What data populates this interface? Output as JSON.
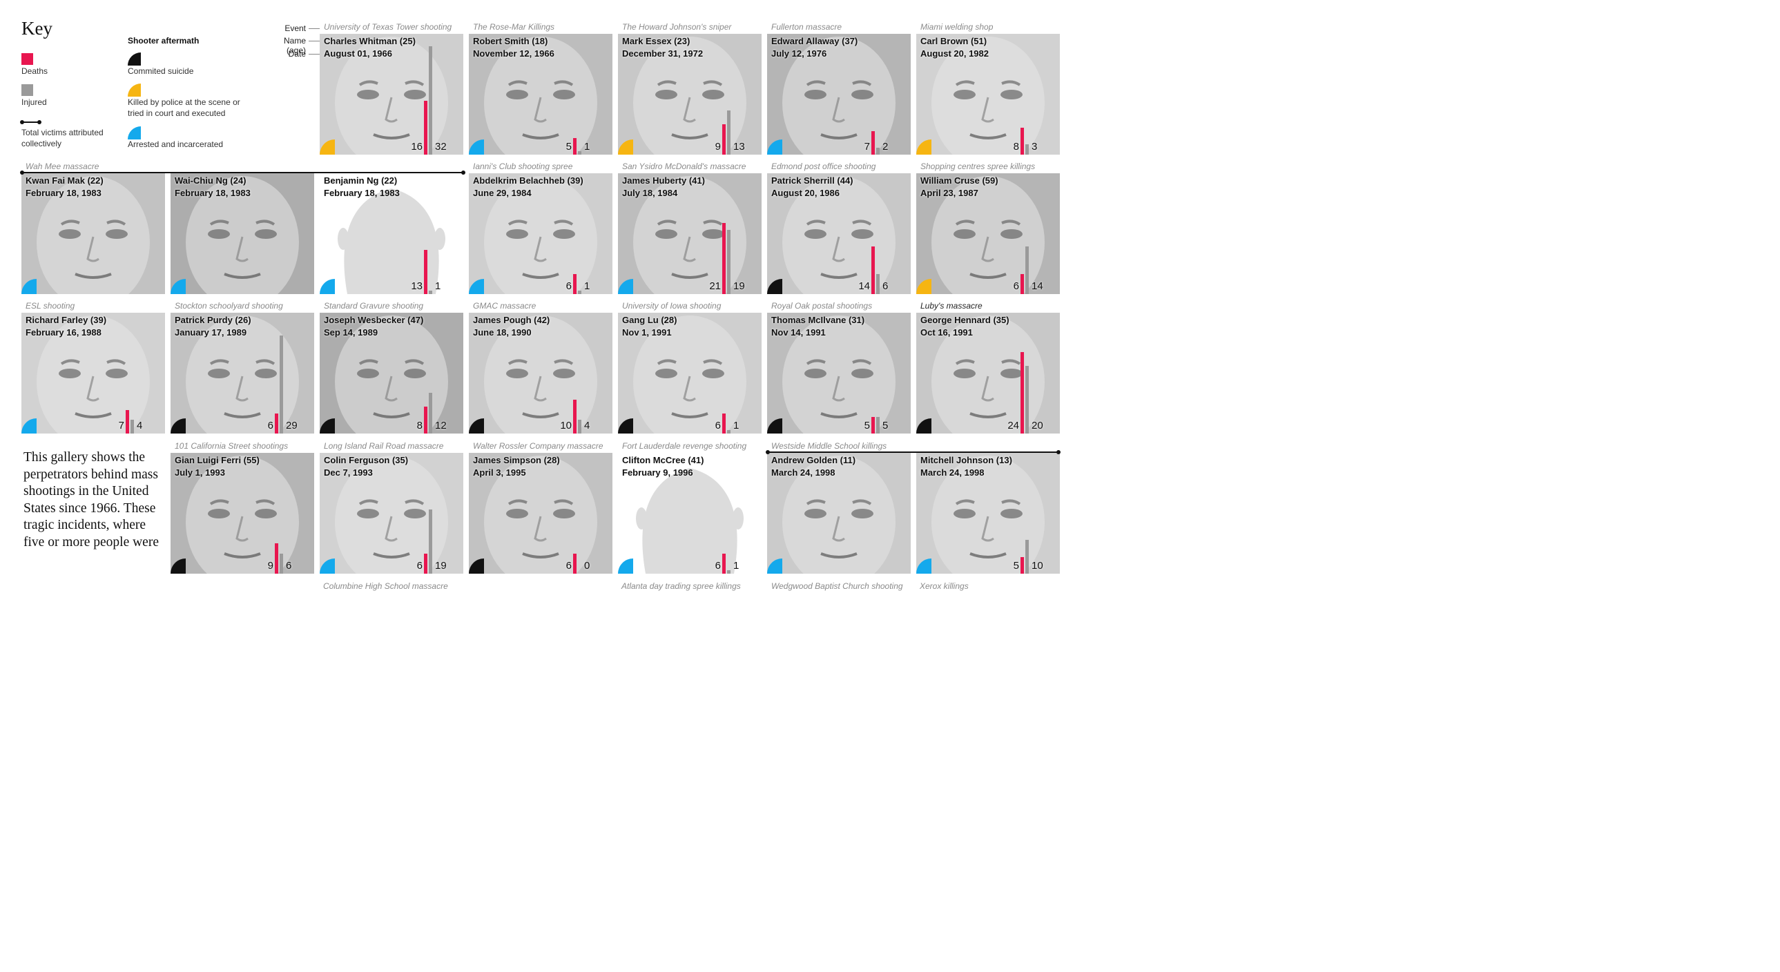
{
  "colors": {
    "deaths": "#e8164f",
    "injured": "#9a9a9a",
    "suicide": "#111111",
    "killed": "#f6b512",
    "arrested": "#14a9ec"
  },
  "key": {
    "title": "Key",
    "deaths": "Deaths",
    "injured": "Injured",
    "total": "Total victims attributed collectively",
    "aftermath_title": "Shooter aftermath",
    "suicide": "Commited suicide",
    "killed": "Killed by police at the scene or tried in court and executed",
    "arrested": "Arrested and incarcerated"
  },
  "annotation": {
    "event": "Event",
    "name_age": "Name (age)",
    "date": "Date"
  },
  "intro": "This gallery shows the perpetrators behind mass shootings in the United States since 1966. These tragic incidents, where five or more people were",
  "bottom_events": [
    "Columbine High School massacre",
    "Atlanta day trading spree killings",
    "Wedgwood Baptist Church shooting",
    "Xerox killings"
  ],
  "chart_data": {
    "type": "bar",
    "series_names": [
      "Deaths",
      "Injured"
    ],
    "scale_note": "bar height proportional to victim count",
    "cells": [
      {
        "event": "University of Texas Tower shooting",
        "name": "Charles Whitman (25)",
        "date": "August 01, 1966",
        "deaths": 16,
        "injured": 32,
        "aftermath": "killed"
      },
      {
        "event": "The Rose-Mar Killings",
        "name": "Robert Smith (18)",
        "date": "November 12, 1966",
        "deaths": 5,
        "injured": 1,
        "aftermath": "arrested"
      },
      {
        "event": "The Howard Johnson's sniper",
        "name": "Mark Essex (23)",
        "date": "December 31, 1972",
        "deaths": 9,
        "injured": 13,
        "aftermath": "killed"
      },
      {
        "event": "Fullerton massacre",
        "name": "Edward Allaway (37)",
        "date": "July 12, 1976",
        "deaths": 7,
        "injured": 2,
        "aftermath": "arrested"
      },
      {
        "event": "Miami welding shop",
        "name": "Carl Brown (51)",
        "date": "August 20, 1982",
        "deaths": 8,
        "injured": 3,
        "aftermath": "killed"
      },
      {
        "event": "Wah Mee massacre",
        "name": "Kwan Fai Mak (22)",
        "date": "February 18, 1983",
        "aftermath": "arrested"
      },
      {
        "event": "",
        "name": "Wai-Chiu Ng (24)",
        "date": "February 18, 1983",
        "aftermath": "arrested"
      },
      {
        "event": "",
        "name": "Benjamin Ng (22)",
        "date": "February 18, 1983",
        "deaths": 13,
        "injured": 1,
        "aftermath": "arrested",
        "silhouette": true
      },
      {
        "event": "Ianni's Club shooting spree",
        "name": "Abdelkrim Belachheb (39)",
        "date": "June 29, 1984",
        "deaths": 6,
        "injured": 1,
        "aftermath": "arrested"
      },
      {
        "event": "San Ysidro McDonald's massacre",
        "name": "James Huberty (41)",
        "date": "July 18, 1984",
        "deaths": 21,
        "injured": 19,
        "aftermath": "arrested"
      },
      {
        "event": "Edmond post office shooting",
        "name": "Patrick Sherrill (44)",
        "date": "August 20, 1986",
        "deaths": 14,
        "injured": 6,
        "aftermath": "suicide"
      },
      {
        "event": "Shopping centres spree killings",
        "name": "William Cruse (59)",
        "date": "April 23, 1987",
        "deaths": 6,
        "injured": 14,
        "aftermath": "killed"
      },
      {
        "event": "ESL shooting",
        "name": "Richard Farley (39)",
        "date": "February 16, 1988",
        "deaths": 7,
        "injured": 4,
        "aftermath": "arrested"
      },
      {
        "event": "Stockton schoolyard shooting",
        "name": "Patrick Purdy (26)",
        "date": "January 17, 1989",
        "deaths": 6,
        "injured": 29,
        "aftermath": "suicide"
      },
      {
        "event": "Standard Gravure shooting",
        "name": "Joseph Wesbecker (47)",
        "date": "Sep 14, 1989",
        "deaths": 8,
        "injured": 12,
        "aftermath": "suicide"
      },
      {
        "event": "GMAC massacre",
        "name": "James Pough (42)",
        "date": "June 18, 1990",
        "deaths": 10,
        "injured": 4,
        "aftermath": "suicide"
      },
      {
        "event": "University of Iowa shooting",
        "name": "Gang Lu (28)",
        "date": "Nov 1, 1991",
        "deaths": 6,
        "injured": 1,
        "aftermath": "suicide"
      },
      {
        "event": "Royal Oak postal shootings",
        "name": "Thomas McIlvane (31)",
        "date": "Nov 14, 1991",
        "deaths": 5,
        "injured": 5,
        "aftermath": "suicide"
      },
      {
        "event": "Luby's massacre",
        "name": "George Hennard (35)",
        "date": "Oct 16, 1991",
        "deaths": 24,
        "injured": 20,
        "aftermath": "suicide"
      },
      {
        "event": "101 California Street shootings",
        "name": "Gian Luigi Ferri (55)",
        "date": "July 1, 1993",
        "deaths": 9,
        "injured": 6,
        "aftermath": "suicide"
      },
      {
        "event": "Long Island Rail Road massacre",
        "name": "Colin Ferguson (35)",
        "date": "Dec 7, 1993",
        "deaths": 6,
        "injured": 19,
        "aftermath": "arrested"
      },
      {
        "event": "Walter Rossler Company massacre",
        "name": "James Simpson (28)",
        "date": "April 3, 1995",
        "deaths": 6,
        "injured": 0,
        "aftermath": "suicide"
      },
      {
        "event": "Fort Lauderdale revenge shooting",
        "name": "Clifton McCree (41)",
        "date": "February 9, 1996",
        "deaths": 6,
        "injured": 1,
        "aftermath": "arrested",
        "silhouette": true
      },
      {
        "event": "Westside Middle School killings",
        "name": "Andrew Golden (11)",
        "date": "March 24, 1998",
        "aftermath": "arrested"
      },
      {
        "event": "",
        "name": "Mitchell Johnson (13)",
        "date": "March 24, 1998",
        "deaths": 5,
        "injured": 10,
        "aftermath": "arrested"
      }
    ]
  }
}
